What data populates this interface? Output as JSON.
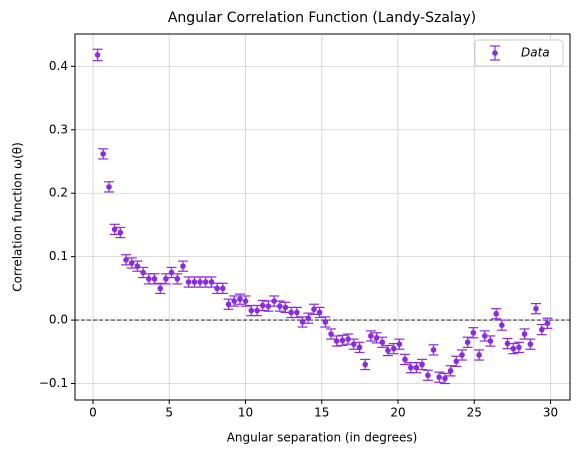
{
  "chart_data": {
    "type": "errorbar_scatter",
    "title": "Angular Correlation Function (Landy-Szalay)",
    "xlabel": "Angular separation (in degrees)",
    "ylabel": "Correlation function ω(θ)",
    "series": [
      {
        "name": "Data",
        "color": "#8a2be2",
        "x": [
          0.3,
          0.67,
          1.05,
          1.42,
          1.79,
          2.17,
          2.54,
          2.91,
          3.29,
          3.66,
          4.03,
          4.41,
          4.78,
          5.15,
          5.53,
          5.9,
          6.27,
          6.65,
          7.02,
          7.39,
          7.77,
          8.14,
          8.51,
          8.89,
          9.26,
          9.64,
          10.01,
          10.38,
          10.76,
          11.13,
          11.5,
          11.88,
          12.25,
          12.62,
          13.0,
          13.37,
          13.74,
          14.12,
          14.49,
          14.86,
          15.24,
          15.61,
          15.98,
          16.36,
          16.73,
          17.1,
          17.48,
          17.85,
          18.22,
          18.6,
          18.97,
          19.34,
          19.72,
          20.09,
          20.46,
          20.84,
          21.21,
          21.58,
          21.96,
          22.33,
          22.7,
          23.08,
          23.45,
          23.82,
          24.2,
          24.57,
          24.94,
          25.32,
          25.69,
          26.06,
          26.44,
          26.81,
          27.18,
          27.56,
          27.93,
          28.3,
          28.68,
          29.05,
          29.43,
          29.8
        ],
        "values": [
          0.418,
          0.262,
          0.21,
          0.143,
          0.138,
          0.095,
          0.09,
          0.085,
          0.075,
          0.065,
          0.065,
          0.05,
          0.065,
          0.075,
          0.065,
          0.085,
          0.06,
          0.06,
          0.06,
          0.06,
          0.06,
          0.05,
          0.05,
          0.025,
          0.03,
          0.033,
          0.03,
          0.015,
          0.015,
          0.023,
          0.022,
          0.03,
          0.022,
          0.02,
          0.012,
          0.012,
          -0.003,
          0.003,
          0.017,
          0.012,
          -0.003,
          -0.022,
          -0.033,
          -0.032,
          -0.03,
          -0.038,
          -0.043,
          -0.07,
          -0.025,
          -0.028,
          -0.035,
          -0.048,
          -0.045,
          -0.038,
          -0.062,
          -0.075,
          -0.075,
          -0.07,
          -0.087,
          -0.047,
          -0.09,
          -0.092,
          -0.08,
          -0.065,
          -0.055,
          -0.035,
          -0.02,
          -0.055,
          -0.025,
          -0.033,
          0.01,
          -0.008,
          -0.037,
          -0.045,
          -0.043,
          -0.022,
          -0.038,
          0.018,
          -0.015,
          -0.005
        ],
        "errors": [
          0.009,
          0.008,
          0.008,
          0.008,
          0.008,
          0.008,
          0.008,
          0.008,
          0.008,
          0.008,
          0.008,
          0.008,
          0.008,
          0.008,
          0.008,
          0.008,
          0.008,
          0.008,
          0.008,
          0.008,
          0.008,
          0.008,
          0.008,
          0.008,
          0.008,
          0.008,
          0.008,
          0.008,
          0.008,
          0.008,
          0.008,
          0.008,
          0.008,
          0.008,
          0.008,
          0.008,
          0.008,
          0.008,
          0.008,
          0.008,
          0.008,
          0.008,
          0.008,
          0.008,
          0.008,
          0.008,
          0.008,
          0.008,
          0.008,
          0.008,
          0.008,
          0.008,
          0.008,
          0.008,
          0.008,
          0.008,
          0.008,
          0.008,
          0.008,
          0.008,
          0.008,
          0.008,
          0.008,
          0.008,
          0.008,
          0.008,
          0.008,
          0.008,
          0.008,
          0.008,
          0.008,
          0.008,
          0.008,
          0.008,
          0.008,
          0.008,
          0.008,
          0.008,
          0.008,
          0.008
        ]
      }
    ],
    "hline": 0,
    "xlim": [
      -1.18,
      31.28
    ],
    "ylim": [
      -0.126,
      0.451
    ],
    "xticks": [
      0,
      5,
      10,
      15,
      20,
      25,
      30
    ],
    "yticks": [
      {
        "value": -0.1,
        "label": "−0.1"
      },
      {
        "value": 0.0,
        "label": "0.0"
      },
      {
        "value": 0.1,
        "label": "0.1"
      },
      {
        "value": 0.2,
        "label": "0.2"
      },
      {
        "value": 0.3,
        "label": "0.3"
      },
      {
        "value": 0.4,
        "label": "0.4"
      }
    ],
    "grid": true,
    "legend": "upper right"
  }
}
